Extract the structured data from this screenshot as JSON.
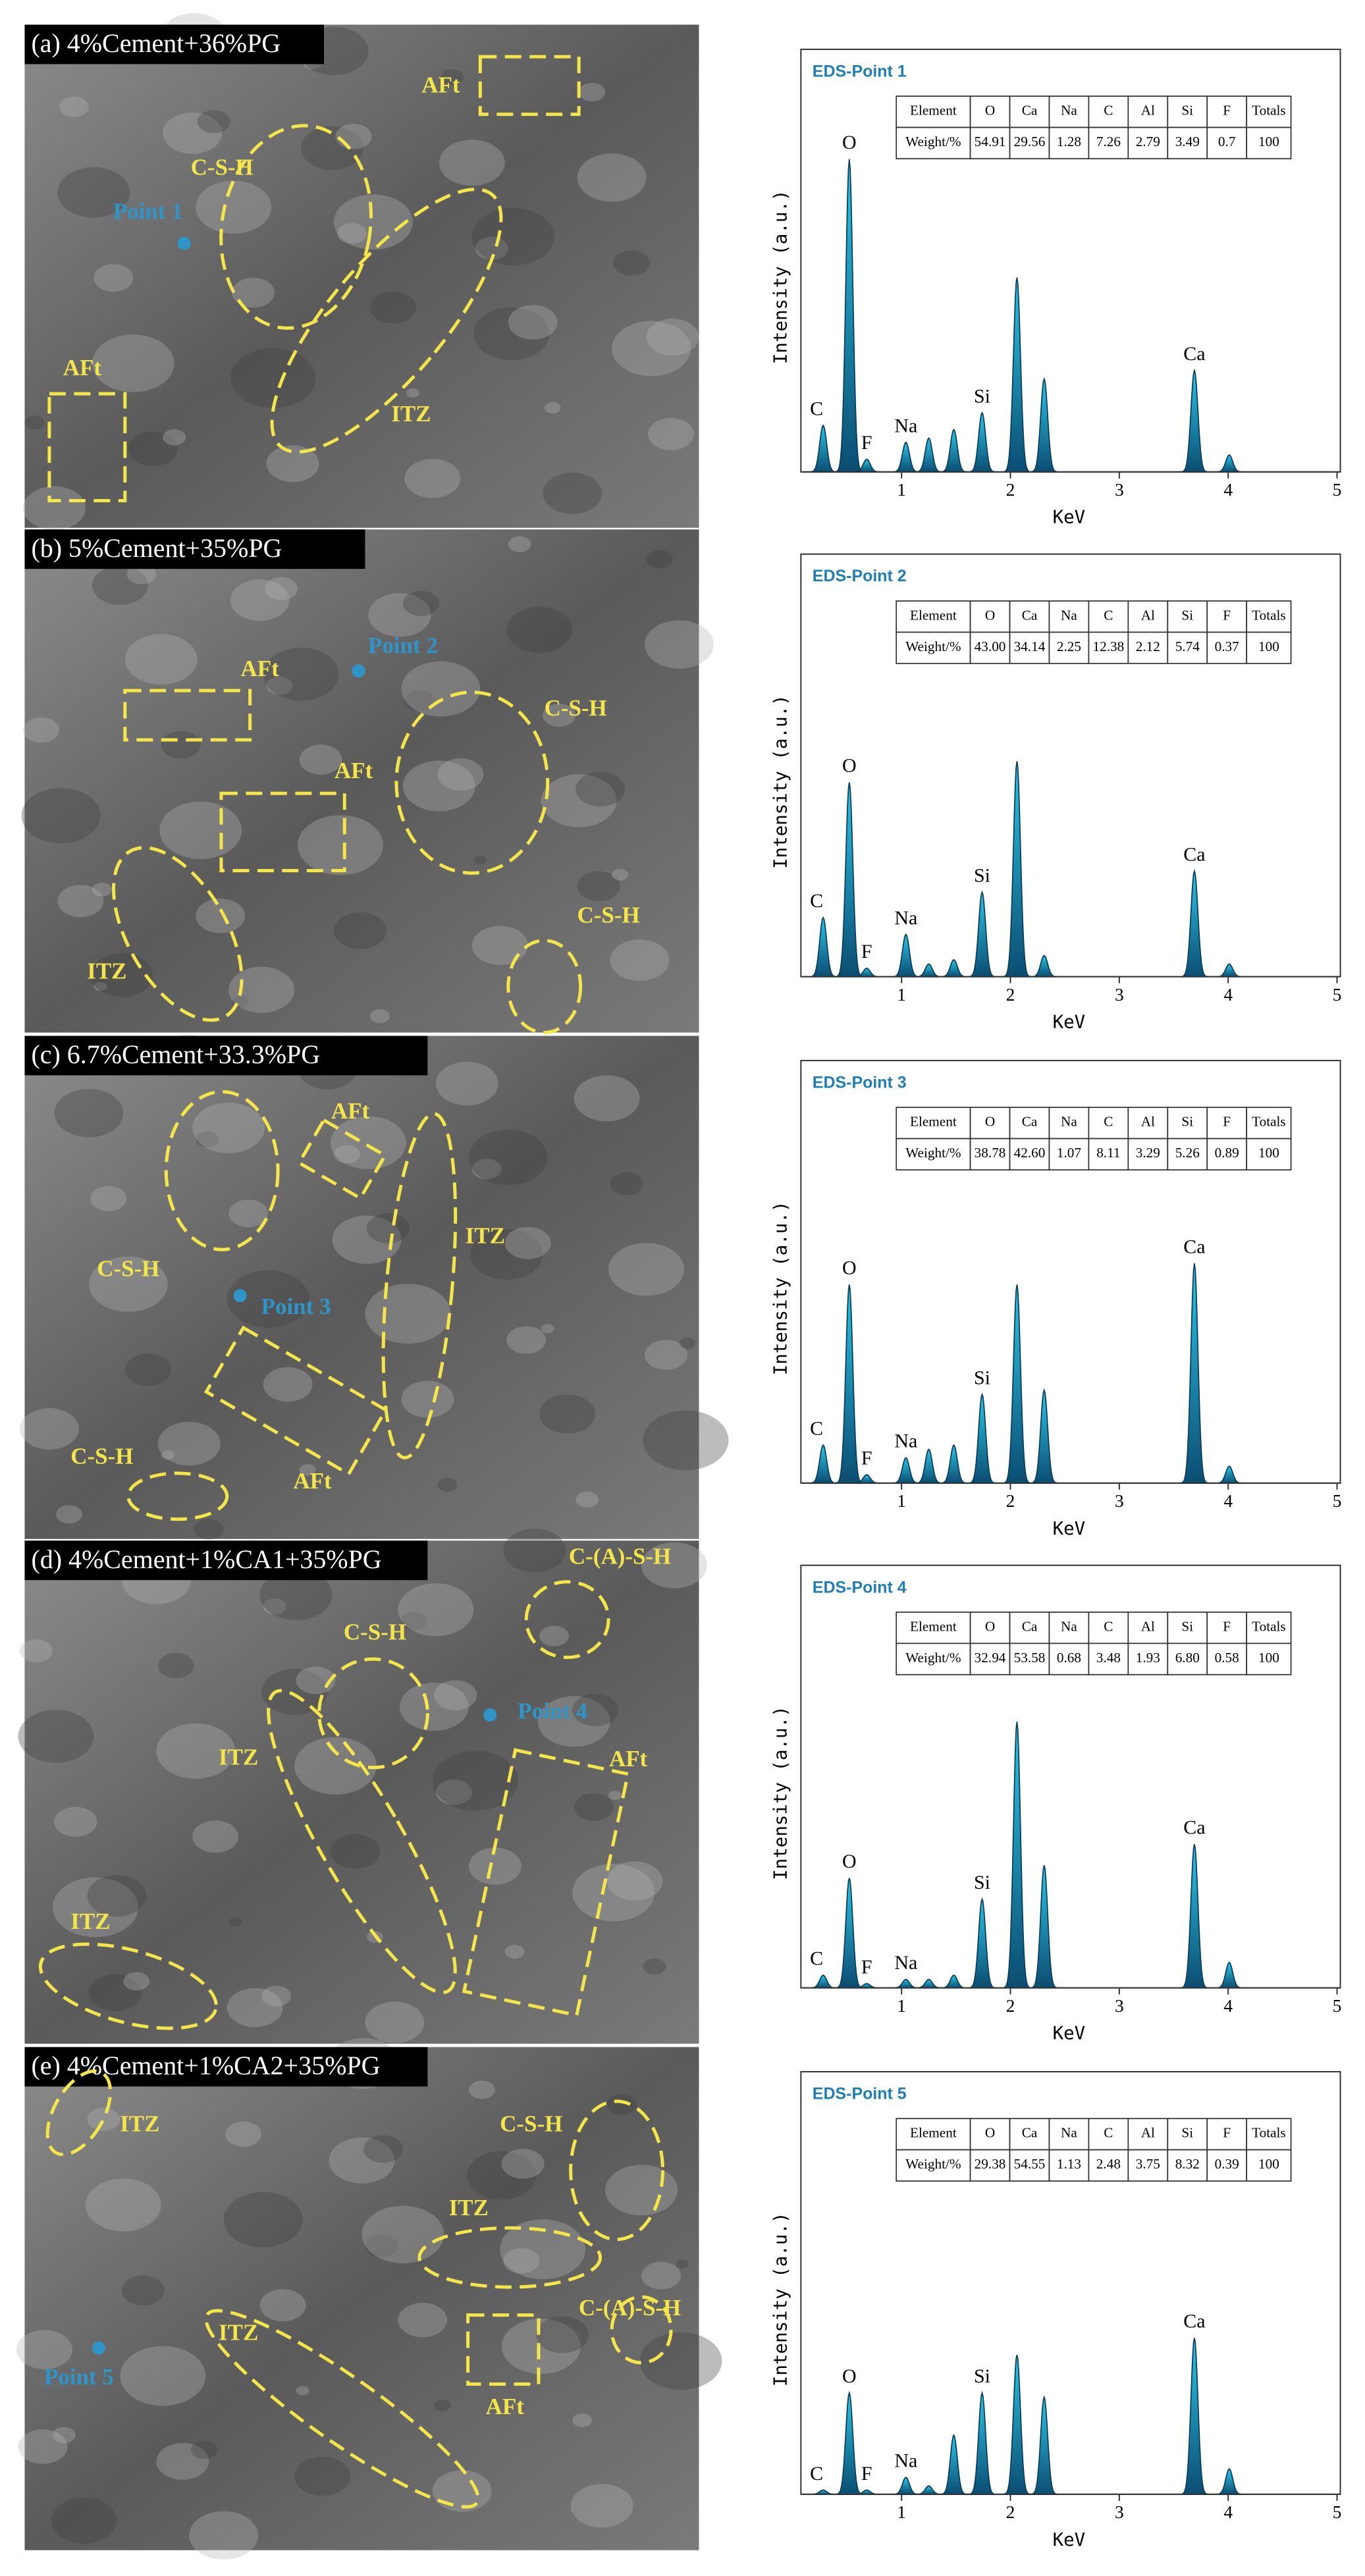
{
  "eds_axis": {
    "xlabel": "KeV",
    "ylabel": "Intensity (a.u.)",
    "xlim": [
      0,
      5
    ],
    "xticks": [
      1,
      2,
      3,
      4,
      5
    ],
    "ylim": [
      0,
      100
    ]
  },
  "panels": [
    {
      "caption": "(a) 4%Cement+36%PG",
      "point_label": "Point 1",
      "annotations": [
        "C-S-H",
        "AFt",
        "ITZ",
        "AFt"
      ],
      "eds": {
        "title": "EDS-Point 1",
        "table": {
          "header": [
            "Element",
            "O",
            "Ca",
            "Na",
            "C",
            "Al",
            "Si",
            "F",
            "Totals"
          ],
          "row": [
            "Weight/%",
            "54.91",
            "29.56",
            "1.28",
            "7.26",
            "2.79",
            "3.49",
            "0.7",
            "100"
          ]
        },
        "peaks": [
          {
            "energy": 0.28,
            "height": 11,
            "label": "C"
          },
          {
            "energy": 0.52,
            "height": 74,
            "label": "O"
          },
          {
            "energy": 0.68,
            "height": 3,
            "label": "F"
          },
          {
            "energy": 1.04,
            "height": 7,
            "label": "Na"
          },
          {
            "energy": 1.25,
            "height": 8
          },
          {
            "energy": 1.48,
            "height": 10
          },
          {
            "energy": 1.74,
            "height": 14,
            "label": "Si"
          },
          {
            "energy": 2.06,
            "height": 46
          },
          {
            "energy": 2.31,
            "height": 22
          },
          {
            "energy": 3.69,
            "height": 24,
            "label": "Ca"
          },
          {
            "energy": 4.01,
            "height": 4
          }
        ]
      }
    },
    {
      "caption": "(b) 5%Cement+35%PG",
      "point_label": "Point 2",
      "annotations": [
        "AFt",
        "AFt",
        "C-S-H",
        "ITZ",
        "C-S-H"
      ],
      "eds": {
        "title": "EDS-Point 2",
        "table": {
          "header": [
            "Element",
            "O",
            "Ca",
            "Na",
            "C",
            "Al",
            "Si",
            "F",
            "Totals"
          ],
          "row": [
            "Weight/%",
            "43.00",
            "34.14",
            "2.25",
            "12.38",
            "2.12",
            "5.74",
            "0.37",
            "100"
          ]
        },
        "peaks": [
          {
            "energy": 0.28,
            "height": 14,
            "label": "C"
          },
          {
            "energy": 0.52,
            "height": 46,
            "label": "O"
          },
          {
            "energy": 0.68,
            "height": 2,
            "label": "F"
          },
          {
            "energy": 1.04,
            "height": 10,
            "label": "Na"
          },
          {
            "energy": 1.25,
            "height": 3
          },
          {
            "energy": 1.48,
            "height": 4
          },
          {
            "energy": 1.74,
            "height": 20,
            "label": "Si"
          },
          {
            "energy": 2.06,
            "height": 51
          },
          {
            "energy": 2.31,
            "height": 5
          },
          {
            "energy": 3.69,
            "height": 25,
            "label": "Ca"
          },
          {
            "energy": 4.01,
            "height": 3
          }
        ]
      }
    },
    {
      "caption": "(c) 6.7%Cement+33.3%PG",
      "point_label": "Point 3",
      "annotations": [
        "C-S-H",
        "AFt",
        "ITZ",
        "AFt",
        "C-S-H"
      ],
      "eds": {
        "title": "EDS-Point 3",
        "table": {
          "header": [
            "Element",
            "O",
            "Ca",
            "Na",
            "C",
            "Al",
            "Si",
            "F",
            "Totals"
          ],
          "row": [
            "Weight/%",
            "38.78",
            "42.60",
            "1.07",
            "8.11",
            "3.29",
            "5.26",
            "0.89",
            "100"
          ]
        },
        "peaks": [
          {
            "energy": 0.28,
            "height": 9,
            "label": "C"
          },
          {
            "energy": 0.52,
            "height": 47,
            "label": "O"
          },
          {
            "energy": 0.68,
            "height": 2,
            "label": "F"
          },
          {
            "energy": 1.04,
            "height": 6,
            "label": "Na"
          },
          {
            "energy": 1.25,
            "height": 8
          },
          {
            "energy": 1.48,
            "height": 9
          },
          {
            "energy": 1.74,
            "height": 21,
            "label": "Si"
          },
          {
            "energy": 2.06,
            "height": 47
          },
          {
            "energy": 2.31,
            "height": 22
          },
          {
            "energy": 3.69,
            "height": 52,
            "label": "Ca"
          },
          {
            "energy": 4.01,
            "height": 4
          }
        ]
      }
    },
    {
      "caption": "(d) 4%Cement+1%CA1+35%PG",
      "point_label": "Point 4",
      "annotations": [
        "C-(A)-S-H",
        "C-S-H",
        "ITZ",
        "AFt",
        "ITZ"
      ],
      "eds": {
        "title": "EDS-Point 4",
        "table": {
          "header": [
            "Element",
            "O",
            "Ca",
            "Na",
            "C",
            "Al",
            "Si",
            "F",
            "Totals"
          ],
          "row": [
            "Weight/%",
            "32.94",
            "53.58",
            "0.68",
            "3.48",
            "1.93",
            "6.80",
            "0.58",
            "100"
          ]
        },
        "peaks": [
          {
            "energy": 0.28,
            "height": 3,
            "label": "C"
          },
          {
            "energy": 0.52,
            "height": 26,
            "label": "O"
          },
          {
            "energy": 0.68,
            "height": 1,
            "label": "F"
          },
          {
            "energy": 1.04,
            "height": 2,
            "label": "Na"
          },
          {
            "energy": 1.25,
            "height": 2
          },
          {
            "energy": 1.48,
            "height": 3
          },
          {
            "energy": 1.74,
            "height": 21,
            "label": "Si"
          },
          {
            "energy": 2.06,
            "height": 63
          },
          {
            "energy": 2.31,
            "height": 29
          },
          {
            "energy": 3.69,
            "height": 34,
            "label": "Ca"
          },
          {
            "energy": 4.01,
            "height": 6
          }
        ]
      }
    },
    {
      "caption": "(e) 4%Cement+1%CA2+35%PG",
      "point_label": "Point 5",
      "annotations": [
        "ITZ",
        "C-S-H",
        "ITZ",
        "ITZ",
        "AFt",
        "C-(A)-S-H"
      ],
      "eds": {
        "title": "EDS-Point 5",
        "table": {
          "header": [
            "Element",
            "O",
            "Ca",
            "Na",
            "C",
            "Al",
            "Si",
            "F",
            "Totals"
          ],
          "row": [
            "Weight/%",
            "29.38",
            "54.55",
            "1.13",
            "2.48",
            "3.75",
            "8.32",
            "0.39",
            "100"
          ]
        },
        "peaks": [
          {
            "energy": 0.28,
            "height": 1,
            "label": "C"
          },
          {
            "energy": 0.52,
            "height": 24,
            "label": "O"
          },
          {
            "energy": 0.68,
            "height": 1,
            "label": "F"
          },
          {
            "energy": 1.04,
            "height": 4,
            "label": "Na"
          },
          {
            "energy": 1.25,
            "height": 2
          },
          {
            "energy": 1.48,
            "height": 14
          },
          {
            "energy": 1.74,
            "height": 24,
            "label": "Si"
          },
          {
            "energy": 2.06,
            "height": 33
          },
          {
            "energy": 2.31,
            "height": 23
          },
          {
            "energy": 3.69,
            "height": 37,
            "label": "Ca"
          },
          {
            "energy": 4.01,
            "height": 6
          }
        ]
      }
    }
  ]
}
